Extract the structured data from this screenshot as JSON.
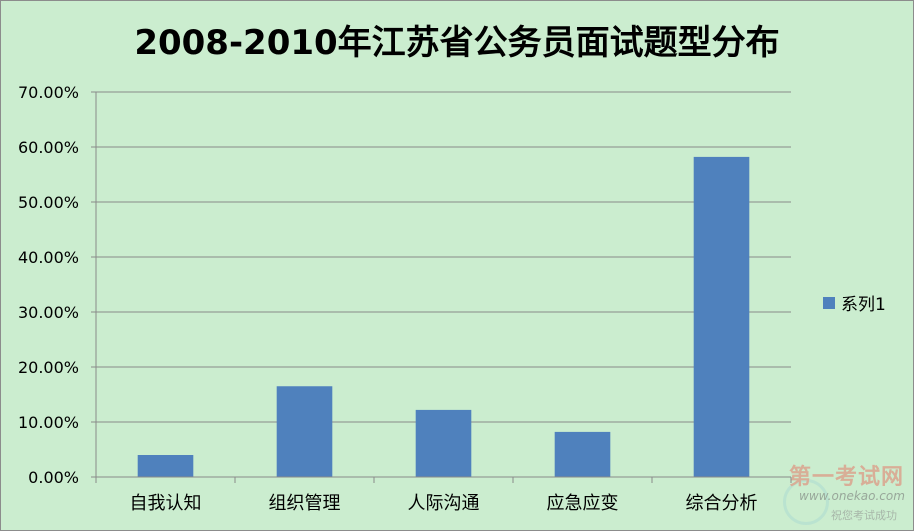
{
  "chart_data": {
    "type": "bar",
    "title": "2008-2010年江苏省公务员面试题型分布",
    "categories": [
      "自我认知",
      "组织管理",
      "人际沟通",
      "应急应变",
      "综合分析"
    ],
    "series": [
      {
        "name": "系列1",
        "values": [
          0.04,
          0.165,
          0.122,
          0.082,
          0.582
        ],
        "color": "#4f81bd"
      }
    ],
    "ylim": [
      0,
      0.7
    ],
    "yticks": [
      "0.00%",
      "10.00%",
      "20.00%",
      "30.00%",
      "40.00%",
      "50.00%",
      "60.00%",
      "70.00%"
    ],
    "grid": true,
    "legend_position": "right",
    "background": "#cbedcf"
  },
  "watermark": {
    "title": "第一考试网",
    "url": "www.onekao.com",
    "slogan": "祝您考试成功"
  }
}
